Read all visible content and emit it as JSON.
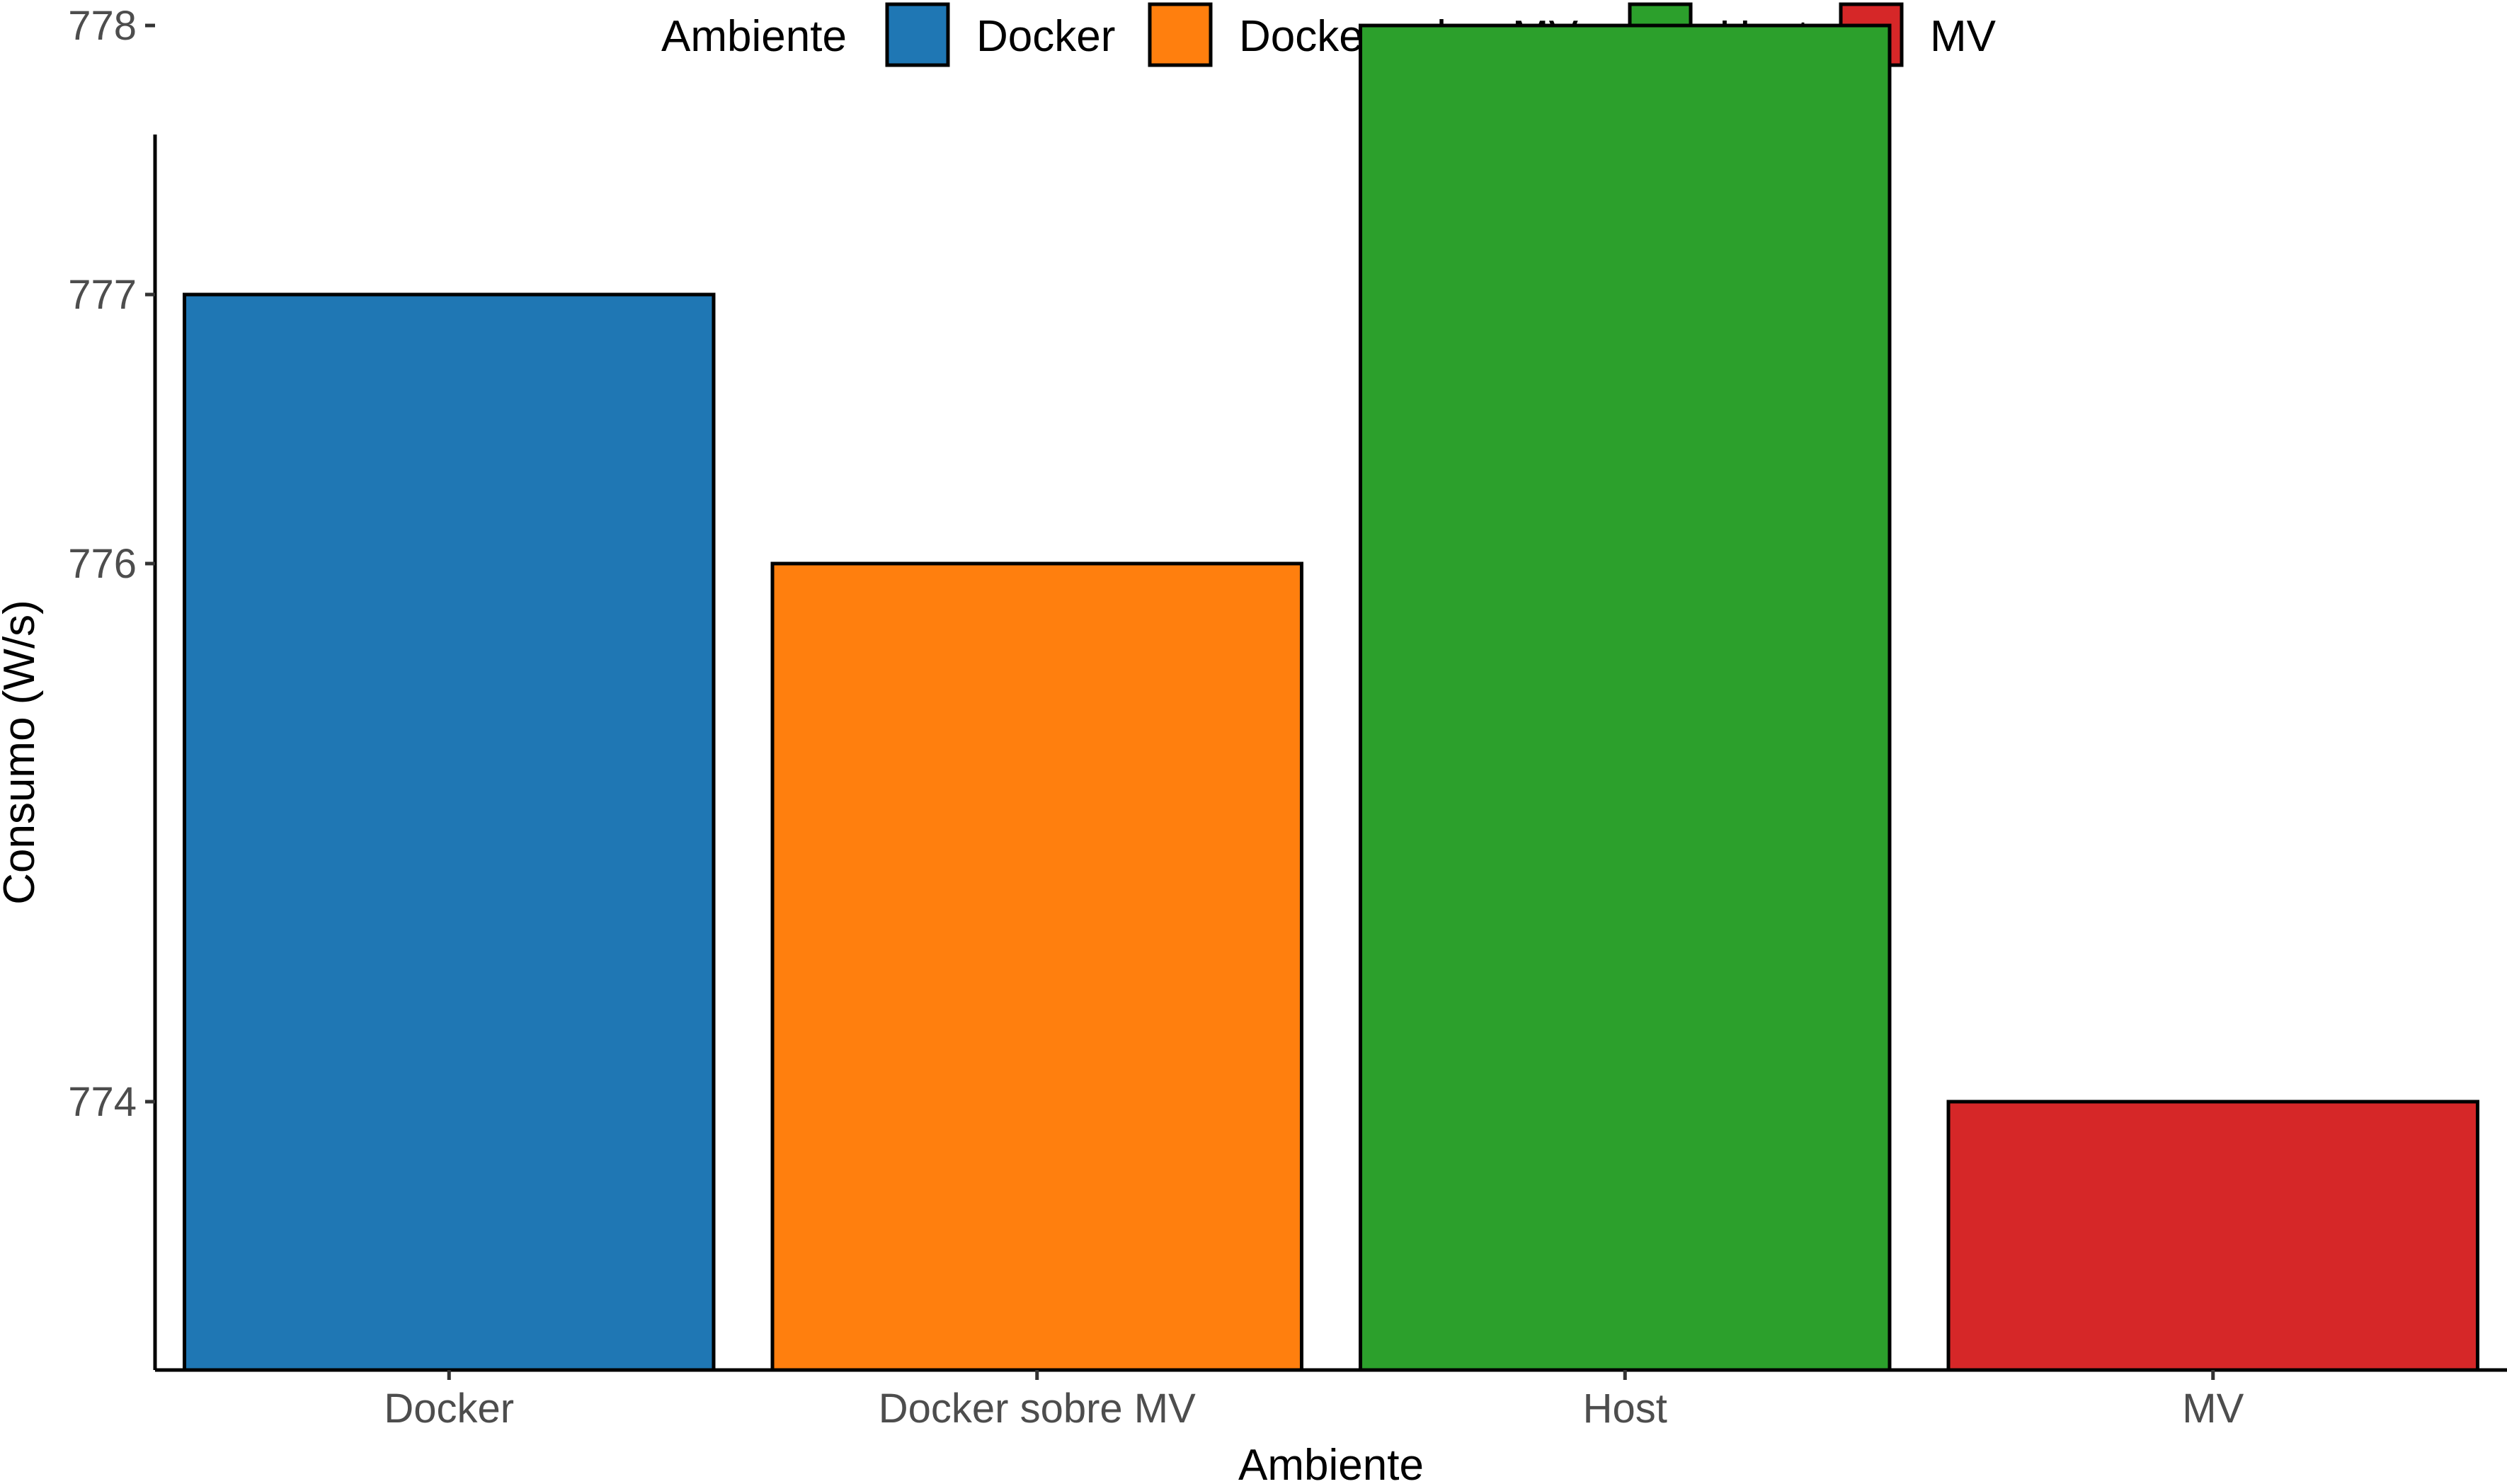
{
  "chart_data": {
    "type": "bar",
    "categories": [
      "Docker",
      "Docker sobre MV",
      "Host",
      "MV"
    ],
    "values": [
      777,
      776,
      778,
      774
    ],
    "colors": [
      "#1f77b4",
      "#ff7f0e",
      "#2ca02c",
      "#d62728"
    ],
    "xlabel": "Ambiente",
    "ylabel": "Consumo (W/s)",
    "ylim": [
      773,
      779
    ],
    "yticks": [
      774,
      776,
      777,
      778
    ],
    "legend": {
      "title": "Ambiente",
      "position": "top",
      "entries": [
        "Docker",
        "Docker sobre MV",
        "Host",
        "MV"
      ]
    },
    "grid": false
  }
}
